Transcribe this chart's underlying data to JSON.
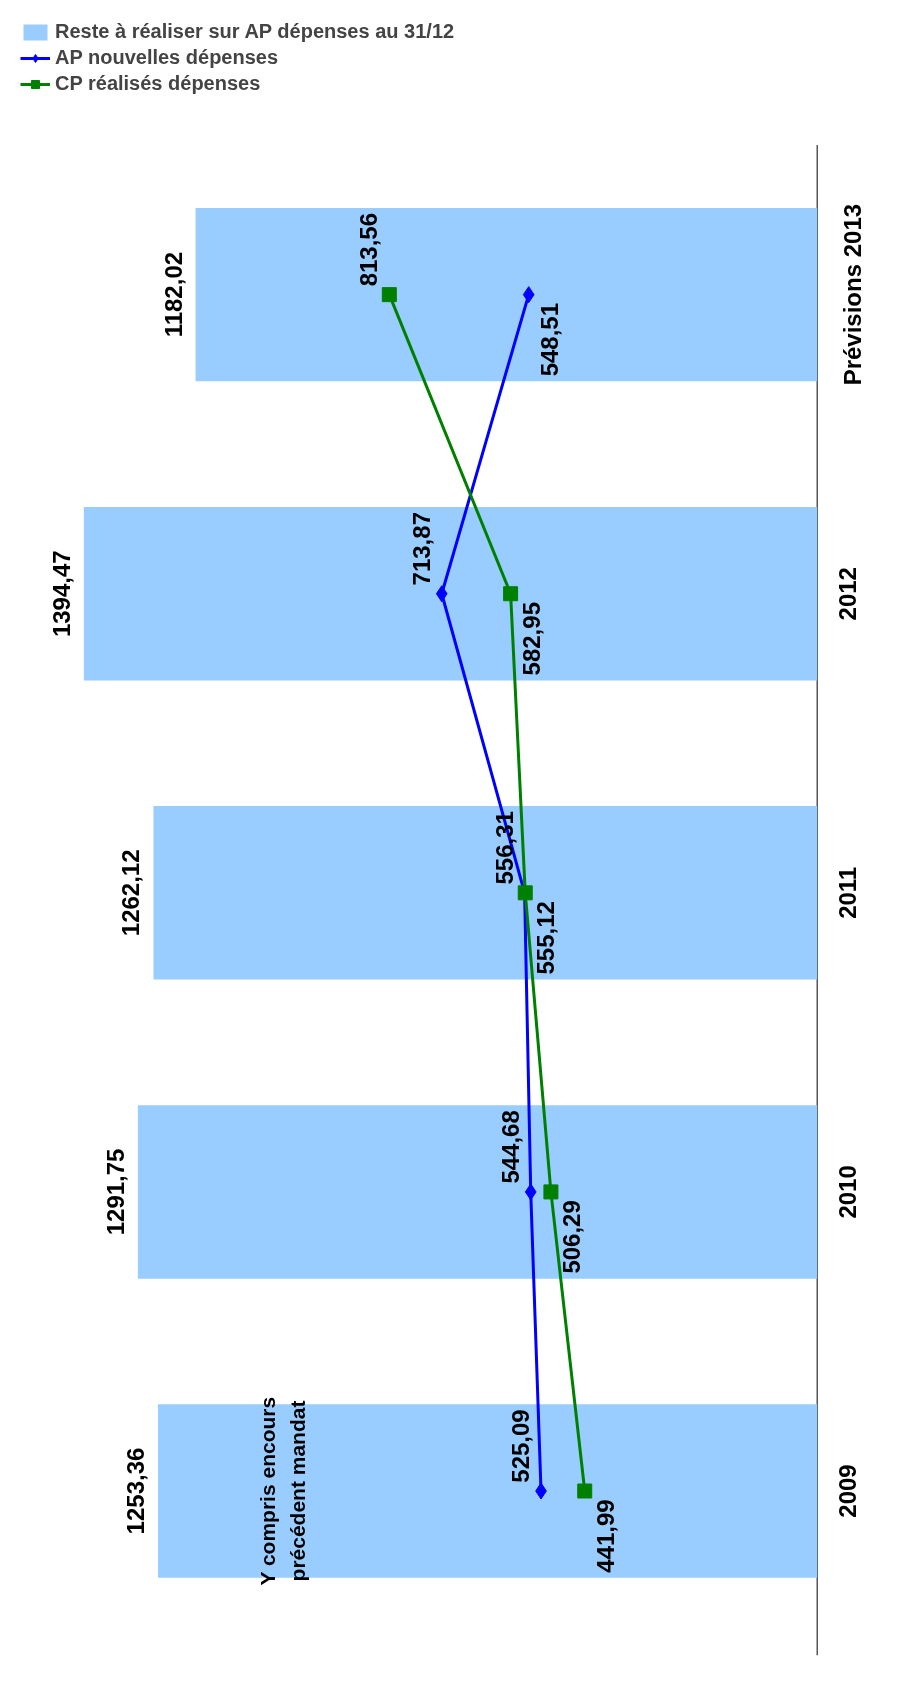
{
  "chart_data": {
    "type": "bar",
    "orientation": "horizontal",
    "categories": [
      "Prévisions 2013",
      "2012",
      "2011",
      "2010",
      "2009"
    ],
    "series": [
      {
        "name": "Reste à réaliser sur AP dépenses au 31/12",
        "color": "#99ccff",
        "values": [
          1182.02,
          1394.47,
          1262.12,
          1291.75,
          1253.36
        ],
        "value_labels": [
          "1182,02",
          "1394,47",
          "1262,12",
          "1291,75",
          "1253,36"
        ]
      },
      {
        "name": "AP nouvelles dépenses",
        "type": "line",
        "marker": "diamond",
        "color": "#0000ff",
        "values": [
          548.51,
          713.87,
          556.31,
          544.68,
          525.09
        ],
        "value_labels": [
          "548,51",
          "713,87",
          "556,31",
          "544,68",
          "525,09"
        ]
      },
      {
        "name": "CP réalisés dépenses",
        "type": "line",
        "marker": "square",
        "color": "#008000",
        "values": [
          813.56,
          582.95,
          555.12,
          506.29,
          441.99
        ],
        "value_labels": [
          "813,56",
          "582,95",
          "555,12",
          "506,29",
          "441,99"
        ]
      }
    ],
    "annotations": [
      "Y compris encours précédent mandat"
    ],
    "legend": "top left",
    "grid": false
  }
}
